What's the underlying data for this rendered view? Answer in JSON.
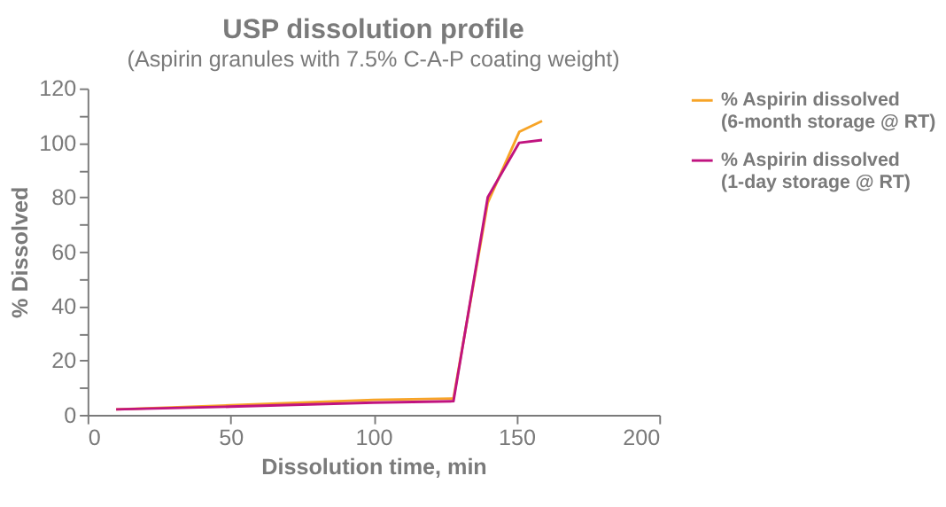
{
  "chart_data": {
    "type": "line",
    "title": "USP dissolution profile",
    "subtitle": "(Aspirin granules with 7.5% C-A-P coating weight)",
    "xlabel": "Dissolution time, min",
    "ylabel": "% Dissolved",
    "x": [
      10,
      50,
      100,
      128,
      140,
      151,
      159
    ],
    "series": [
      {
        "name": "% Aspirin dissolved\n(6-month storage @ RT)",
        "color": "#f7a427",
        "values": [
          2,
          3.5,
          5.5,
          6,
          78,
          104,
          108
        ]
      },
      {
        "name": "% Aspirin dissolved\n(1-day storage @ RT)",
        "color": "#c0137f",
        "values": [
          2,
          3,
          4.5,
          5,
          80,
          100,
          101
        ]
      }
    ],
    "xlim": [
      0,
      200
    ],
    "xticks": [
      0,
      50,
      100,
      150,
      200
    ],
    "ylim": [
      0,
      120
    ],
    "yticks": [
      0,
      {
        "value": 10,
        "label": null
      },
      20,
      {
        "value": 30,
        "label": null
      },
      40,
      {
        "value": 50,
        "label": null
      },
      60,
      {
        "value": 70,
        "label": null
      },
      80,
      {
        "value": 90,
        "label": null
      },
      100,
      {
        "value": 110,
        "label": null
      },
      120
    ],
    "grid": false,
    "legend": "top right",
    "marker": "none",
    "line_style": "solid"
  }
}
